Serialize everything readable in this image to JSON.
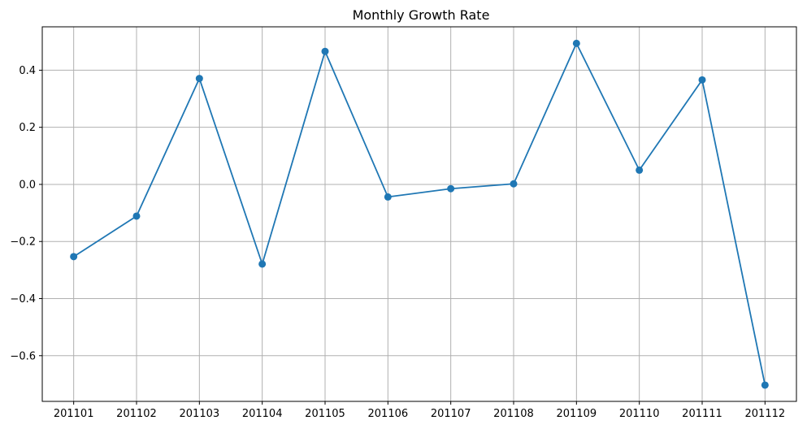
{
  "chart_data": {
    "type": "line",
    "title": "Monthly Growth Rate",
    "xlabel": "",
    "ylabel": "",
    "categories": [
      "201101",
      "201102",
      "201103",
      "201104",
      "201105",
      "201106",
      "201107",
      "201108",
      "201109",
      "201110",
      "201111",
      "201112"
    ],
    "series": [
      {
        "values": [
          -0.253,
          -0.111,
          0.371,
          -0.279,
          0.466,
          -0.044,
          -0.015,
          0.002,
          0.494,
          0.05,
          0.366,
          -0.703
        ],
        "color": "#1f77b4",
        "marker": "circle"
      }
    ],
    "ylim": [
      -0.76,
      0.552
    ],
    "yticks": [
      -0.6,
      -0.4,
      -0.2,
      0.0,
      0.2,
      0.4
    ],
    "ytick_labels": [
      "−0.6",
      "−0.4",
      "−0.2",
      "0.0",
      "0.2",
      "0.4"
    ],
    "grid": true,
    "legend": "none"
  }
}
